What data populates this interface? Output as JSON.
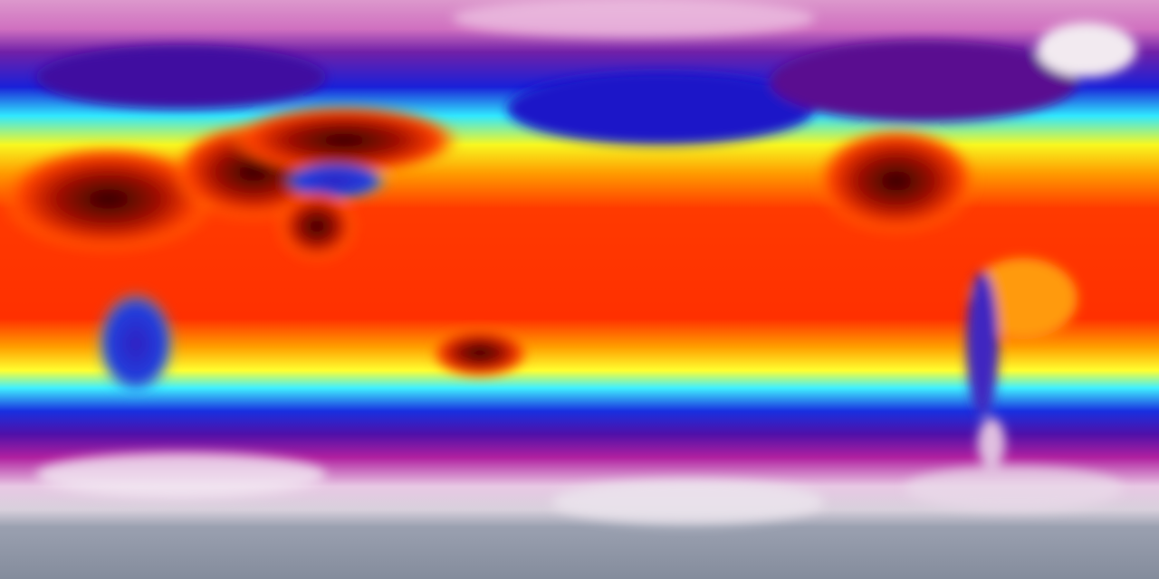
{
  "map": {
    "projection": "equirectangular",
    "colormap": [
      "#8a92a4",
      "#f0e6f0",
      "#c020a0",
      "#5010a0",
      "#1020e0",
      "#30f0ff",
      "#ffff20",
      "#ff9000",
      "#ff2000",
      "#8a0000",
      "#200000"
    ],
    "colors": {
      "arctic": "#d890c8",
      "cold": "#1018d8",
      "mild": "#30f0ff",
      "warm": "#ffff20",
      "hot": "#ff3000",
      "very_hot": "#8a0800",
      "antarctic": "#8a92a4",
      "ice": "#f2eaf0"
    }
  }
}
